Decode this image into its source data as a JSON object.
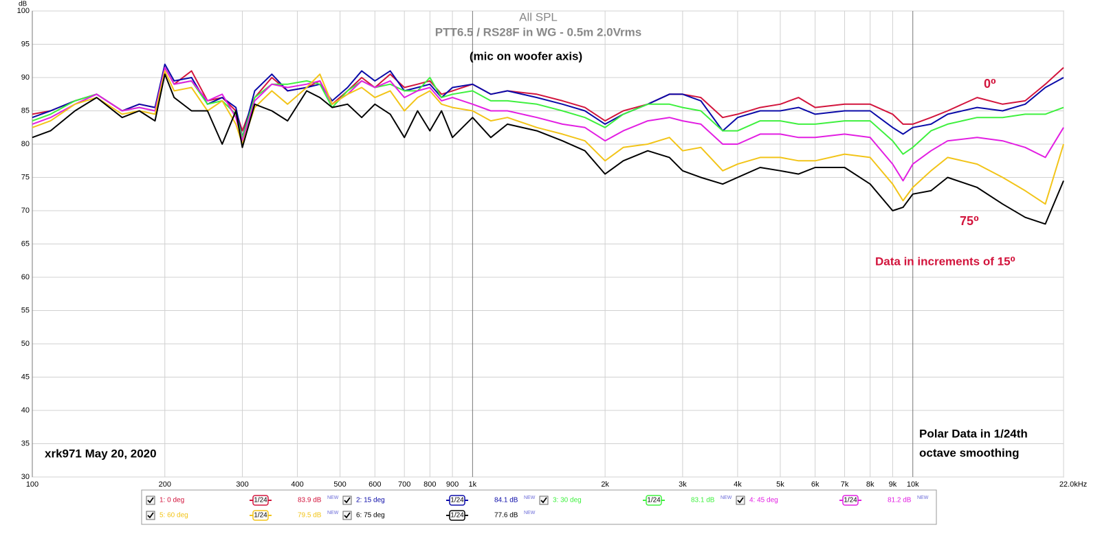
{
  "chart_data": {
    "type": "line",
    "title": "All SPL",
    "subtitle": "PTT6.5 / RS28F in WG - 0.5m 2.0Vrms",
    "y_label": "dB",
    "log_x": true,
    "grid": true,
    "xlim": [
      100,
      22000
    ],
    "ylim": [
      30,
      100
    ],
    "yticks": [
      30,
      35,
      40,
      45,
      50,
      55,
      60,
      65,
      70,
      75,
      80,
      85,
      90,
      95,
      100
    ],
    "xticks": [
      100,
      200,
      300,
      400,
      500,
      600,
      700,
      800,
      900,
      {
        "value": 1000,
        "label": "1k"
      },
      {
        "value": 2000,
        "label": "2k"
      },
      {
        "value": 3000,
        "label": "3k"
      },
      {
        "value": 4000,
        "label": "4k"
      },
      {
        "value": 5000,
        "label": "5k"
      },
      {
        "value": 6000,
        "label": "6k"
      },
      {
        "value": 7000,
        "label": "7k"
      },
      {
        "value": 8000,
        "label": "8k"
      },
      {
        "value": 9000,
        "label": "9k"
      },
      {
        "value": 10000,
        "label": "10k"
      },
      {
        "value": 22000,
        "label": "22.0kHz"
      }
    ],
    "x": [
      100,
      110,
      125,
      140,
      160,
      175,
      190,
      200,
      210,
      230,
      250,
      270,
      290,
      300,
      320,
      350,
      380,
      420,
      450,
      480,
      520,
      560,
      600,
      650,
      700,
      750,
      800,
      850,
      900,
      1000,
      1100,
      1200,
      1400,
      1600,
      1800,
      2000,
      2200,
      2500,
      2800,
      3000,
      3300,
      3700,
      4000,
      4500,
      5000,
      5500,
      6000,
      7000,
      8000,
      9000,
      9500,
      10000,
      11000,
      12000,
      14000,
      16000,
      18000,
      20000,
      22000
    ],
    "series": [
      {
        "name": "1: 0 deg",
        "color": "#d2143c",
        "smoothing": "1/24",
        "level_label": "83.9 dB",
        "tag": "NEW",
        "values": [
          84.5,
          85,
          86.5,
          87.5,
          85,
          86,
          85.5,
          91.5,
          89,
          91,
          86.5,
          87,
          85,
          82,
          87,
          90,
          88,
          88.5,
          89.5,
          86,
          88,
          90,
          88.5,
          90.5,
          88.5,
          89,
          89.5,
          87.5,
          88,
          89,
          87.5,
          88,
          87.5,
          86.5,
          85.5,
          83.5,
          85,
          86,
          87.5,
          87.5,
          87,
          84,
          84.5,
          85.5,
          86,
          87,
          85.5,
          86,
          86,
          84.5,
          83,
          83,
          84,
          85,
          87,
          86,
          86.5,
          89,
          91.5
        ]
      },
      {
        "name": "2: 15 deg",
        "color": "#0a0aa8",
        "smoothing": "1/24",
        "level_label": "84.1 dB",
        "tag": "NEW",
        "values": [
          84,
          85,
          86.5,
          87.5,
          85,
          86,
          85.5,
          92,
          89.5,
          90,
          86,
          87,
          85.5,
          81,
          88,
          90.5,
          88,
          88.5,
          89,
          86.5,
          88.5,
          91,
          89.5,
          91,
          88,
          88.5,
          89,
          87,
          88.5,
          89,
          87.5,
          88,
          87,
          86,
          85,
          83,
          84.5,
          86,
          87.5,
          87.5,
          86.5,
          82,
          84,
          85,
          85,
          85.5,
          84.5,
          85,
          85,
          82.5,
          81.5,
          82.5,
          83,
          84.5,
          85.5,
          85,
          86,
          88.5,
          90
        ]
      },
      {
        "name": "3: 30 deg",
        "color": "#3ef03e",
        "smoothing": "1/24",
        "level_label": "83.1 dB",
        "tag": "NEW",
        "values": [
          83.5,
          84.5,
          86.5,
          87.5,
          85,
          85.5,
          85,
          91.5,
          89,
          89.5,
          86,
          86.5,
          84.5,
          81,
          87,
          89,
          89,
          89.5,
          89,
          85.5,
          88,
          89.5,
          88.5,
          89,
          88,
          88,
          90,
          87,
          87.5,
          88,
          86.5,
          86.5,
          86,
          85,
          84,
          82.5,
          84.5,
          86,
          86,
          85.5,
          85,
          82,
          82,
          83.5,
          83.5,
          83,
          83,
          83.5,
          83.5,
          80.5,
          78.5,
          79.5,
          82,
          83,
          84,
          84,
          84.5,
          84.5,
          85.5
        ]
      },
      {
        "name": "4: 45 deg",
        "color": "#e21ee2",
        "smoothing": "1/24",
        "level_label": "81.2 dB",
        "tag": "NEW",
        "values": [
          83,
          84,
          86,
          87.5,
          85,
          85.5,
          85,
          91.5,
          89,
          89.5,
          86.5,
          87.5,
          84,
          80.5,
          86.5,
          89,
          88.5,
          89,
          89.5,
          86,
          87.5,
          89.5,
          88.5,
          89.5,
          87,
          88,
          88.5,
          86.5,
          87,
          86,
          85,
          85,
          84,
          83,
          82.5,
          80.5,
          82,
          83.5,
          84,
          83.5,
          83,
          80,
          80,
          81.5,
          81.5,
          81,
          81,
          81.5,
          81,
          77,
          74.5,
          77,
          79,
          80.5,
          81,
          80.5,
          79.5,
          78,
          82.5
        ]
      },
      {
        "name": "5: 60 deg",
        "color": "#f2c418",
        "smoothing": "1/24",
        "level_label": "79.5 dB",
        "tag": "NEW",
        "values": [
          82.5,
          83.5,
          86,
          87,
          84.5,
          85,
          84.5,
          91,
          88,
          88.5,
          85,
          86.5,
          83,
          80,
          85.5,
          88,
          86,
          88.5,
          90.5,
          86,
          87.5,
          88.5,
          87,
          88,
          85,
          87,
          88,
          86,
          85.5,
          85,
          83.5,
          84,
          82.5,
          81.5,
          80.5,
          77.5,
          79.5,
          80,
          81,
          79,
          79.5,
          76,
          77,
          78,
          78,
          77.5,
          77.5,
          78.5,
          78,
          74,
          71.5,
          73.5,
          76,
          78,
          77,
          75,
          73,
          71,
          80
        ]
      },
      {
        "name": "6: 75 deg",
        "color": "#000000",
        "smoothing": "1/24",
        "level_label": "77.6 dB",
        "tag": "NEW",
        "values": [
          81,
          82,
          85,
          87,
          84,
          85,
          83.5,
          90.5,
          87,
          85,
          85,
          80,
          85,
          79.5,
          86,
          85,
          83.5,
          88,
          87,
          85.5,
          86,
          84,
          86,
          84.5,
          81,
          85,
          82,
          85,
          81,
          84,
          81,
          83,
          82,
          80.5,
          79,
          75.5,
          77.5,
          79,
          78,
          76,
          75,
          74,
          75,
          76.5,
          76,
          75.5,
          76.5,
          76.5,
          74,
          70,
          70.5,
          72.5,
          73,
          75,
          73.5,
          71,
          69,
          68,
          74.5
        ]
      }
    ],
    "annotations": [
      "(mic on woofer axis)",
      "0⁰",
      "75⁰",
      "Data in increments of 15⁰",
      "xrk971  May 20, 2020",
      "Polar Data in 1/24th",
      "octave smoothing"
    ]
  }
}
